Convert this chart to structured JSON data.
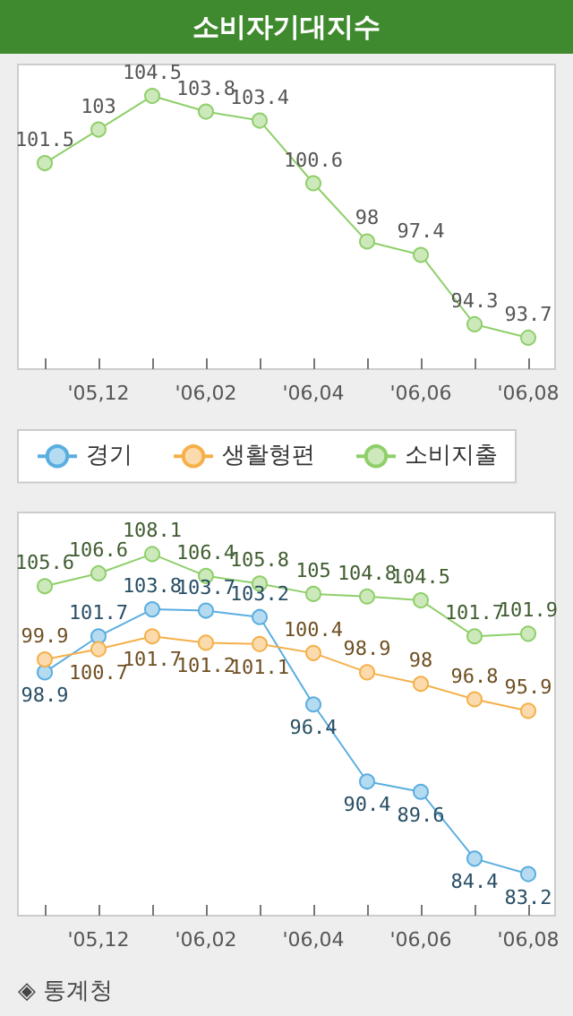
{
  "chart_data": [
    {
      "type": "line",
      "title": "소비자기대지수",
      "categories": [
        null,
        "'05,12",
        null,
        "'06,02",
        null,
        "'06,04",
        null,
        "'06,06",
        null,
        "'06,08"
      ],
      "series": [
        {
          "color": "#8fcf6a",
          "values": [
            101.5,
            103,
            104.5,
            103.8,
            103.4,
            100.6,
            98,
            97.4,
            94.3,
            93.7
          ]
        }
      ],
      "data_labels": true,
      "marker": "circle",
      "grid": false,
      "tick_labels": "x",
      "legend": false
    },
    {
      "type": "line",
      "categories": [
        null,
        "'05,12",
        null,
        "'06,02",
        null,
        "'06,04",
        null,
        "'06,06",
        null,
        "'06,08"
      ],
      "series": [
        {
          "name": "경기",
          "color": "#5aaee0",
          "values": [
            98.9,
            101.7,
            103.8,
            103.7,
            103.2,
            96.4,
            90.4,
            89.6,
            84.4,
            83.2
          ]
        },
        {
          "name": "생활형편",
          "color": "#f5b04a",
          "values": [
            99.9,
            100.7,
            101.7,
            101.2,
            101.1,
            100.4,
            98.9,
            98,
            96.8,
            95.9
          ]
        },
        {
          "name": "소비지출",
          "color": "#8fcf6a",
          "values": [
            105.6,
            106.6,
            108.1,
            106.4,
            105.8,
            105,
            104.8,
            104.5,
            101.7,
            101.9
          ]
        }
      ],
      "data_labels": true,
      "marker": "circle",
      "grid": false,
      "tick_labels": "x",
      "legend": "top left",
      "annotations": [
        "◈ 통계청"
      ]
    }
  ]
}
